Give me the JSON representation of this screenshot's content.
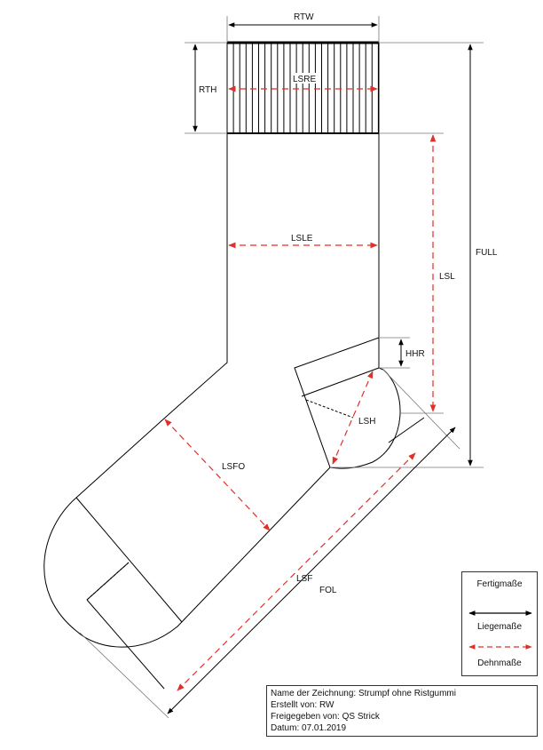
{
  "dimensions": {
    "rtw": "RTW",
    "rth": "RTH",
    "lsre": "LSRE",
    "lsle": "LSLE",
    "lsl": "LSL",
    "full": "FULL",
    "hhr": "HHR",
    "lsh": "LSH",
    "lsfo": "LSFO",
    "lsf": "LSF",
    "fol": "FOL"
  },
  "legend": {
    "fertig": "Fertigmaße",
    "liege": "Liegemaße",
    "dehn": "Dehnmaße",
    "colors": {
      "liege": "#000000",
      "dehn": "#e0302a"
    }
  },
  "titleblock": {
    "name": "Name der Zeichnung: Strumpf ohne Ristgummi",
    "author": "Erstellt von: RW",
    "approved": "Freigegeben von: QS Strick",
    "date": "Datum: 07.01.2019"
  }
}
